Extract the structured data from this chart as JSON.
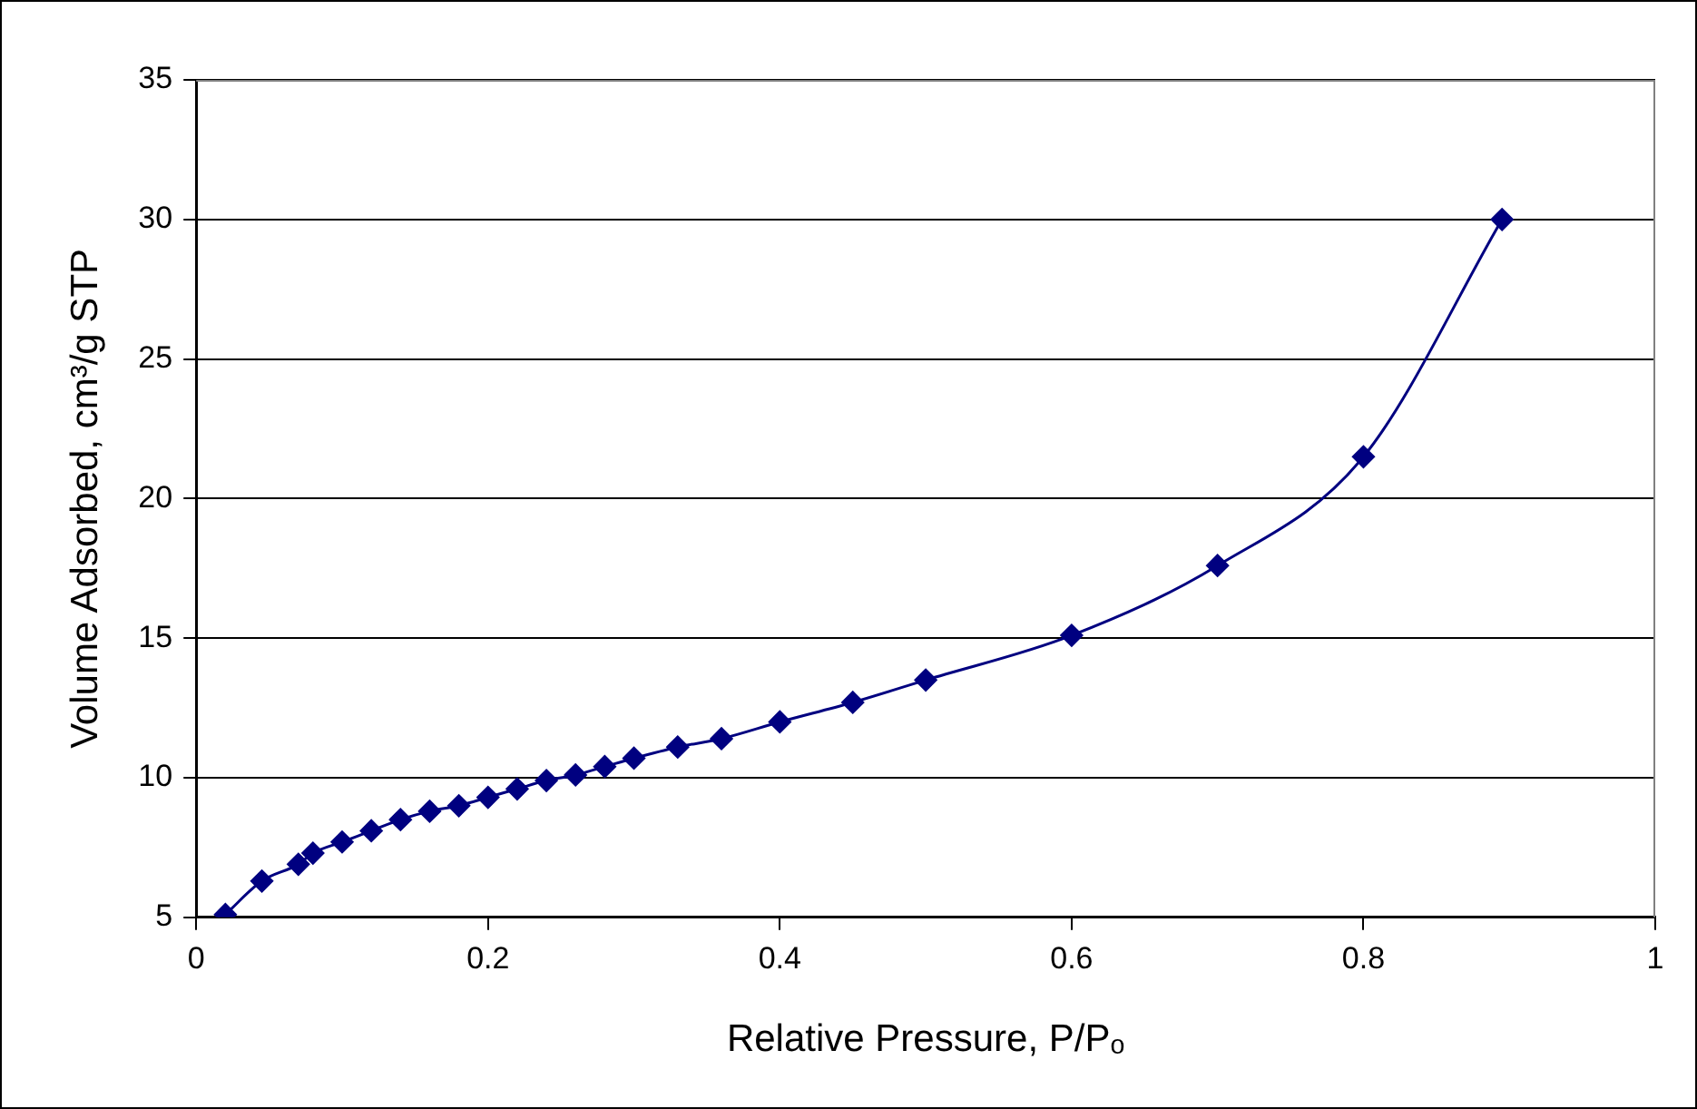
{
  "chart_data": {
    "type": "line",
    "xlabel": "Relative Pressure, P/Pₒ",
    "ylabel": "Volume Adsorbed, cm³/g STP",
    "x": [
      0.02,
      0.045,
      0.07,
      0.08,
      0.1,
      0.12,
      0.14,
      0.16,
      0.18,
      0.2,
      0.22,
      0.24,
      0.26,
      0.28,
      0.3,
      0.33,
      0.36,
      0.4,
      0.45,
      0.5,
      0.6,
      0.7,
      0.8,
      0.895
    ],
    "series": [
      {
        "color": "#000080",
        "values": [
          5.1,
          6.3,
          6.9,
          7.3,
          7.7,
          8.1,
          8.5,
          8.8,
          9.0,
          9.3,
          9.6,
          9.9,
          10.1,
          10.4,
          10.7,
          11.1,
          11.4,
          12.0,
          12.7,
          13.5,
          15.1,
          17.6,
          21.5,
          30.0
        ]
      }
    ],
    "xlim": [
      0,
      1
    ],
    "xticks": [
      0,
      0.2,
      0.4,
      0.6,
      0.8,
      1
    ],
    "ylim": [
      5,
      35
    ],
    "yticks": [
      5,
      10,
      15,
      20,
      25,
      30,
      35
    ],
    "grid": "y",
    "marker": "diamond",
    "line_style": "solid",
    "legend": false
  }
}
